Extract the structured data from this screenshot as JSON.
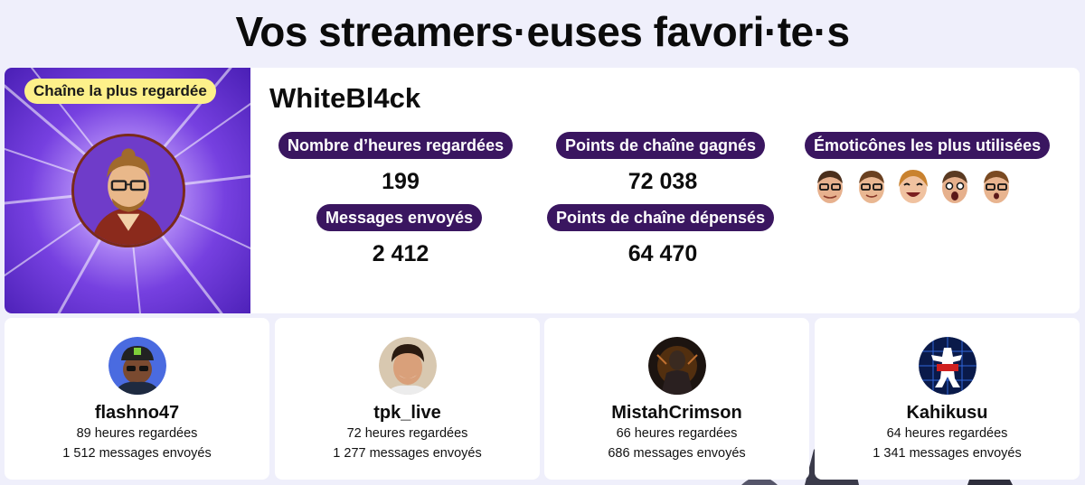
{
  "title": "Vos streamers·euses favori·te·s",
  "featured": {
    "badge": "Chaîne la plus regardée",
    "name": "WhiteBl4ck",
    "stats": {
      "hours_label": "Nombre d’heures regardées",
      "hours_value": "199",
      "messages_label": "Messages envoyés",
      "messages_value": "2 412",
      "points_earned_label": "Points de chaîne gagnés",
      "points_earned_value": "72 038",
      "points_spent_label": "Points de chaîne dépensés",
      "points_spent_value": "64 470",
      "emotes_label": "Émoticônes les plus utilisées"
    },
    "emote_icons": [
      "glasses-face-emote-icon",
      "glasses-face-emote-icon",
      "laughing-face-emote-icon",
      "surprised-face-emote-icon",
      "glasses-face-emote-icon"
    ]
  },
  "others": [
    {
      "name": "flashno47",
      "hours": "89 heures regardées",
      "messages": "1 512 messages envoyés"
    },
    {
      "name": "tpk_live",
      "hours": "72 heures regardées",
      "messages": "1 277 messages envoyés"
    },
    {
      "name": "MistahCrimson",
      "hours": "66 heures regardées",
      "messages": "686 messages envoyés"
    },
    {
      "name": "Kahikusu",
      "hours": "64 heures regardées",
      "messages": "1 341 messages envoyés"
    }
  ],
  "colors": {
    "background": "#efeffb",
    "pill": "#3a1660",
    "badge": "#fdf08a",
    "banner": "#7640e0"
  }
}
